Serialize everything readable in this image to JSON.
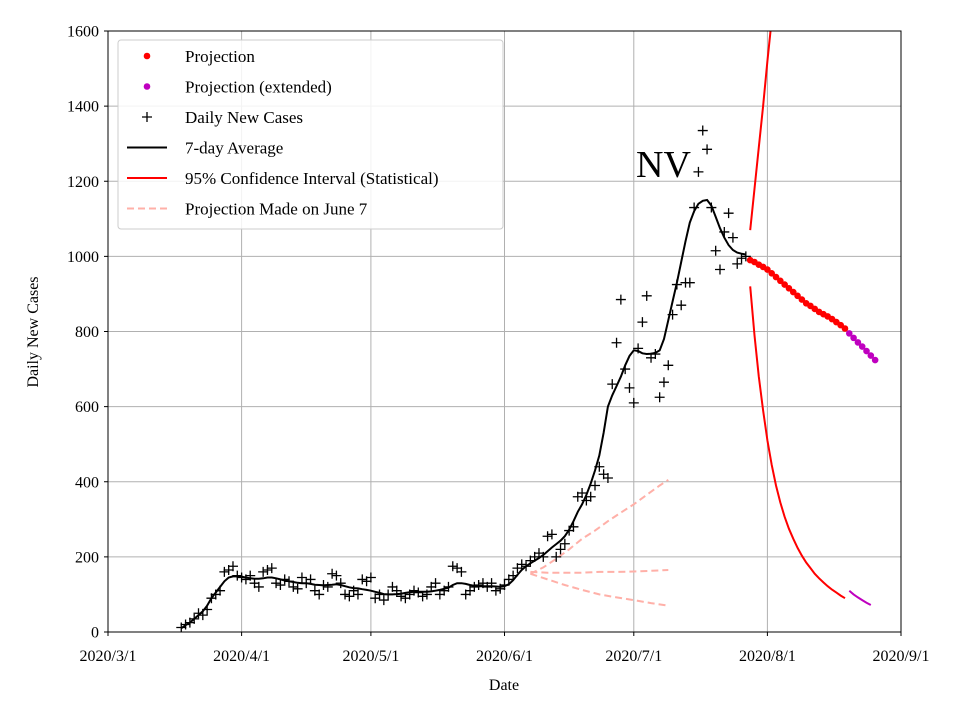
{
  "chart_data": {
    "type": "line",
    "annotation": "NV",
    "xlabel": "Date",
    "ylabel": "Daily New Cases",
    "xlim": [
      0,
      184
    ],
    "ylim": [
      0,
      1600
    ],
    "grid": true,
    "legend_position": "top-left",
    "x_ticks": [
      {
        "day": 0,
        "label": "2020/3/1"
      },
      {
        "day": 31,
        "label": "2020/4/1"
      },
      {
        "day": 61,
        "label": "2020/5/1"
      },
      {
        "day": 92,
        "label": "2020/6/1"
      },
      {
        "day": 122,
        "label": "2020/7/1"
      },
      {
        "day": 153,
        "label": "2020/8/1"
      },
      {
        "day": 184,
        "label": "2020/9/1"
      }
    ],
    "y_ticks": [
      0,
      200,
      400,
      600,
      800,
      1000,
      1200,
      1400,
      1600
    ],
    "legend": [
      {
        "name": "Projection",
        "kind": "dot",
        "color": "#ff0000"
      },
      {
        "name": "Projection (extended)",
        "kind": "dot",
        "color": "#bf00bf"
      },
      {
        "name": "Daily New Cases",
        "kind": "plus",
        "color": "#000000"
      },
      {
        "name": "7-day Average",
        "kind": "line",
        "color": "#000000"
      },
      {
        "name": "95% Confidence Interval (Statistical)",
        "kind": "line",
        "color": "#ff0000"
      },
      {
        "name": "Projection Made on June 7",
        "kind": "dash",
        "color": "#ffb0a8"
      }
    ],
    "daily_cases": [
      [
        17,
        12
      ],
      [
        18,
        20
      ],
      [
        19,
        25
      ],
      [
        20,
        35
      ],
      [
        21,
        50
      ],
      [
        22,
        45
      ],
      [
        23,
        60
      ],
      [
        24,
        90
      ],
      [
        25,
        100
      ],
      [
        26,
        110
      ],
      [
        27,
        160
      ],
      [
        28,
        165
      ],
      [
        29,
        175
      ],
      [
        30,
        150
      ],
      [
        31,
        145
      ],
      [
        32,
        140
      ],
      [
        33,
        150
      ],
      [
        34,
        130
      ],
      [
        35,
        120
      ],
      [
        36,
        160
      ],
      [
        37,
        165
      ],
      [
        38,
        170
      ],
      [
        39,
        130
      ],
      [
        40,
        125
      ],
      [
        41,
        140
      ],
      [
        42,
        135
      ],
      [
        43,
        120
      ],
      [
        44,
        115
      ],
      [
        45,
        145
      ],
      [
        46,
        130
      ],
      [
        47,
        140
      ],
      [
        48,
        110
      ],
      [
        49,
        100
      ],
      [
        50,
        125
      ],
      [
        51,
        120
      ],
      [
        52,
        155
      ],
      [
        53,
        150
      ],
      [
        54,
        130
      ],
      [
        55,
        100
      ],
      [
        56,
        95
      ],
      [
        57,
        110
      ],
      [
        58,
        100
      ],
      [
        59,
        140
      ],
      [
        60,
        135
      ],
      [
        61,
        145
      ],
      [
        62,
        90
      ],
      [
        63,
        100
      ],
      [
        64,
        85
      ],
      [
        65,
        100
      ],
      [
        66,
        120
      ],
      [
        67,
        110
      ],
      [
        68,
        95
      ],
      [
        69,
        90
      ],
      [
        70,
        100
      ],
      [
        71,
        110
      ],
      [
        72,
        105
      ],
      [
        73,
        95
      ],
      [
        74,
        100
      ],
      [
        75,
        120
      ],
      [
        76,
        130
      ],
      [
        77,
        100
      ],
      [
        78,
        110
      ],
      [
        79,
        120
      ],
      [
        80,
        175
      ],
      [
        81,
        170
      ],
      [
        82,
        160
      ],
      [
        83,
        100
      ],
      [
        84,
        110
      ],
      [
        85,
        120
      ],
      [
        86,
        125
      ],
      [
        87,
        130
      ],
      [
        88,
        120
      ],
      [
        89,
        130
      ],
      [
        90,
        110
      ],
      [
        91,
        115
      ],
      [
        92,
        125
      ],
      [
        93,
        140
      ],
      [
        94,
        150
      ],
      [
        95,
        170
      ],
      [
        96,
        180
      ],
      [
        97,
        175
      ],
      [
        98,
        190
      ],
      [
        99,
        200
      ],
      [
        100,
        210
      ],
      [
        101,
        200
      ],
      [
        102,
        255
      ],
      [
        103,
        260
      ],
      [
        104,
        200
      ],
      [
        105,
        220
      ],
      [
        106,
        235
      ],
      [
        107,
        270
      ],
      [
        108,
        280
      ],
      [
        109,
        360
      ],
      [
        110,
        370
      ],
      [
        111,
        350
      ],
      [
        112,
        360
      ],
      [
        113,
        390
      ],
      [
        114,
        440
      ],
      [
        115,
        420
      ],
      [
        116,
        410
      ],
      [
        117,
        660
      ],
      [
        118,
        770
      ],
      [
        119,
        885
      ],
      [
        120,
        700
      ],
      [
        121,
        650
      ],
      [
        122,
        610
      ],
      [
        123,
        755
      ],
      [
        124,
        825
      ],
      [
        125,
        895
      ],
      [
        126,
        730
      ],
      [
        127,
        740
      ],
      [
        128,
        625
      ],
      [
        129,
        665
      ],
      [
        130,
        710
      ],
      [
        131,
        845
      ],
      [
        132,
        925
      ],
      [
        133,
        870
      ],
      [
        134,
        930
      ],
      [
        135,
        930
      ],
      [
        136,
        1130
      ],
      [
        137,
        1225
      ],
      [
        138,
        1335
      ],
      [
        139,
        1285
      ],
      [
        140,
        1130
      ],
      [
        141,
        1015
      ],
      [
        142,
        965
      ],
      [
        143,
        1065
      ],
      [
        144,
        1115
      ],
      [
        145,
        1050
      ],
      [
        146,
        980
      ],
      [
        147,
        995
      ],
      [
        148,
        1000
      ]
    ],
    "avg_7day": [
      [
        17,
        10
      ],
      [
        18,
        18
      ],
      [
        19,
        25
      ],
      [
        20,
        35
      ],
      [
        21,
        45
      ],
      [
        22,
        55
      ],
      [
        23,
        70
      ],
      [
        24,
        90
      ],
      [
        25,
        105
      ],
      [
        26,
        120
      ],
      [
        27,
        135
      ],
      [
        28,
        145
      ],
      [
        29,
        148
      ],
      [
        30,
        148
      ],
      [
        31,
        147
      ],
      [
        32,
        145
      ],
      [
        33,
        143
      ],
      [
        34,
        142
      ],
      [
        35,
        142
      ],
      [
        36,
        143
      ],
      [
        37,
        145
      ],
      [
        38,
        145
      ],
      [
        39,
        143
      ],
      [
        40,
        140
      ],
      [
        41,
        137
      ],
      [
        42,
        135
      ],
      [
        43,
        133
      ],
      [
        44,
        131
      ],
      [
        45,
        130
      ],
      [
        46,
        130
      ],
      [
        47,
        128
      ],
      [
        48,
        126
      ],
      [
        49,
        125
      ],
      [
        50,
        124
      ],
      [
        51,
        125
      ],
      [
        52,
        126
      ],
      [
        53,
        127
      ],
      [
        54,
        125
      ],
      [
        55,
        122
      ],
      [
        56,
        119
      ],
      [
        57,
        117
      ],
      [
        58,
        116
      ],
      [
        59,
        114
      ],
      [
        60,
        112
      ],
      [
        61,
        110
      ],
      [
        62,
        107
      ],
      [
        63,
        104
      ],
      [
        64,
        101
      ],
      [
        65,
        100
      ],
      [
        66,
        100
      ],
      [
        67,
        101
      ],
      [
        68,
        102
      ],
      [
        69,
        104
      ],
      [
        70,
        106
      ],
      [
        71,
        107
      ],
      [
        72,
        107
      ],
      [
        73,
        107
      ],
      [
        74,
        107
      ],
      [
        75,
        108
      ],
      [
        76,
        110
      ],
      [
        77,
        112
      ],
      [
        78,
        115
      ],
      [
        79,
        118
      ],
      [
        80,
        125
      ],
      [
        81,
        130
      ],
      [
        82,
        130
      ],
      [
        83,
        128
      ],
      [
        84,
        125
      ],
      [
        85,
        123
      ],
      [
        86,
        122
      ],
      [
        87,
        122
      ],
      [
        88,
        122
      ],
      [
        89,
        122
      ],
      [
        90,
        121
      ],
      [
        91,
        120
      ],
      [
        92,
        122
      ],
      [
        93,
        127
      ],
      [
        94,
        138
      ],
      [
        95,
        152
      ],
      [
        96,
        165
      ],
      [
        97,
        175
      ],
      [
        98,
        183
      ],
      [
        99,
        190
      ],
      [
        100,
        197
      ],
      [
        101,
        205
      ],
      [
        102,
        215
      ],
      [
        103,
        225
      ],
      [
        104,
        234
      ],
      [
        105,
        243
      ],
      [
        106,
        255
      ],
      [
        107,
        272
      ],
      [
        108,
        295
      ],
      [
        109,
        320
      ],
      [
        110,
        340
      ],
      [
        111,
        365
      ],
      [
        112,
        395
      ],
      [
        113,
        430
      ],
      [
        114,
        470
      ],
      [
        115,
        530
      ],
      [
        116,
        600
      ],
      [
        117,
        630
      ],
      [
        118,
        655
      ],
      [
        119,
        680
      ],
      [
        120,
        710
      ],
      [
        121,
        735
      ],
      [
        122,
        750
      ],
      [
        123,
        748
      ],
      [
        124,
        742
      ],
      [
        125,
        740
      ],
      [
        126,
        741
      ],
      [
        127,
        743
      ],
      [
        128,
        750
      ],
      [
        129,
        780
      ],
      [
        130,
        830
      ],
      [
        131,
        880
      ],
      [
        132,
        930
      ],
      [
        133,
        985
      ],
      [
        134,
        1040
      ],
      [
        135,
        1090
      ],
      [
        136,
        1120
      ],
      [
        137,
        1140
      ],
      [
        138,
        1148
      ],
      [
        139,
        1150
      ],
      [
        140,
        1135
      ],
      [
        141,
        1105
      ],
      [
        142,
        1075
      ],
      [
        143,
        1050
      ],
      [
        144,
        1030
      ],
      [
        145,
        1017
      ],
      [
        146,
        1010
      ],
      [
        147,
        1007
      ],
      [
        148,
        1005
      ]
    ],
    "projection": [
      [
        149,
        990
      ],
      [
        150,
        985
      ],
      [
        151,
        978
      ],
      [
        152,
        972
      ],
      [
        153,
        965
      ],
      [
        154,
        955
      ],
      [
        155,
        945
      ],
      [
        156,
        935
      ],
      [
        157,
        925
      ],
      [
        158,
        915
      ],
      [
        159,
        905
      ],
      [
        160,
        895
      ],
      [
        161,
        885
      ],
      [
        162,
        875
      ],
      [
        163,
        868
      ],
      [
        164,
        860
      ],
      [
        165,
        852
      ],
      [
        166,
        846
      ],
      [
        167,
        840
      ],
      [
        168,
        833
      ],
      [
        169,
        825
      ],
      [
        170,
        817
      ],
      [
        171,
        808
      ]
    ],
    "projection_extended": [
      [
        172,
        795
      ],
      [
        173,
        783
      ],
      [
        174,
        771
      ],
      [
        175,
        760
      ],
      [
        176,
        748
      ],
      [
        177,
        736
      ],
      [
        178,
        724
      ]
    ],
    "ci_upper": [
      [
        149,
        1070
      ],
      [
        150,
        1180
      ],
      [
        151,
        1290
      ],
      [
        152,
        1400
      ],
      [
        153,
        1520
      ],
      [
        154,
        1630
      ]
    ],
    "ci_lower": [
      [
        149,
        920
      ],
      [
        150,
        790
      ],
      [
        151,
        680
      ],
      [
        152,
        590
      ],
      [
        153,
        510
      ],
      [
        154,
        445
      ],
      [
        155,
        390
      ],
      [
        156,
        345
      ],
      [
        157,
        307
      ],
      [
        158,
        275
      ],
      [
        159,
        248
      ],
      [
        160,
        224
      ],
      [
        161,
        203
      ],
      [
        162,
        185
      ],
      [
        163,
        170
      ],
      [
        164,
        155
      ],
      [
        165,
        143
      ],
      [
        166,
        132
      ],
      [
        167,
        122
      ],
      [
        168,
        113
      ],
      [
        169,
        105
      ],
      [
        170,
        97
      ],
      [
        171,
        90
      ]
    ],
    "ci_lower_extended": [
      [
        172,
        110
      ],
      [
        173,
        100
      ],
      [
        174,
        92
      ],
      [
        175,
        85
      ],
      [
        176,
        78
      ],
      [
        177,
        72
      ]
    ],
    "june7_projection": {
      "upper": [
        [
          98,
          155
        ],
        [
          101,
          172
        ],
        [
          104,
          195
        ],
        [
          107,
          220
        ],
        [
          110,
          248
        ],
        [
          113,
          270
        ],
        [
          116,
          295
        ],
        [
          119,
          318
        ],
        [
          122,
          340
        ],
        [
          125,
          365
        ],
        [
          128,
          390
        ],
        [
          130,
          405
        ]
      ],
      "middle": [
        [
          98,
          160
        ],
        [
          102,
          158
        ],
        [
          106,
          158
        ],
        [
          110,
          158
        ],
        [
          114,
          160
        ],
        [
          118,
          160
        ],
        [
          122,
          161
        ],
        [
          126,
          163
        ],
        [
          130,
          165
        ]
      ],
      "lower": [
        [
          98,
          155
        ],
        [
          102,
          140
        ],
        [
          106,
          125
        ],
        [
          110,
          112
        ],
        [
          114,
          100
        ],
        [
          118,
          92
        ],
        [
          122,
          85
        ],
        [
          126,
          77
        ],
        [
          130,
          70
        ]
      ]
    }
  }
}
